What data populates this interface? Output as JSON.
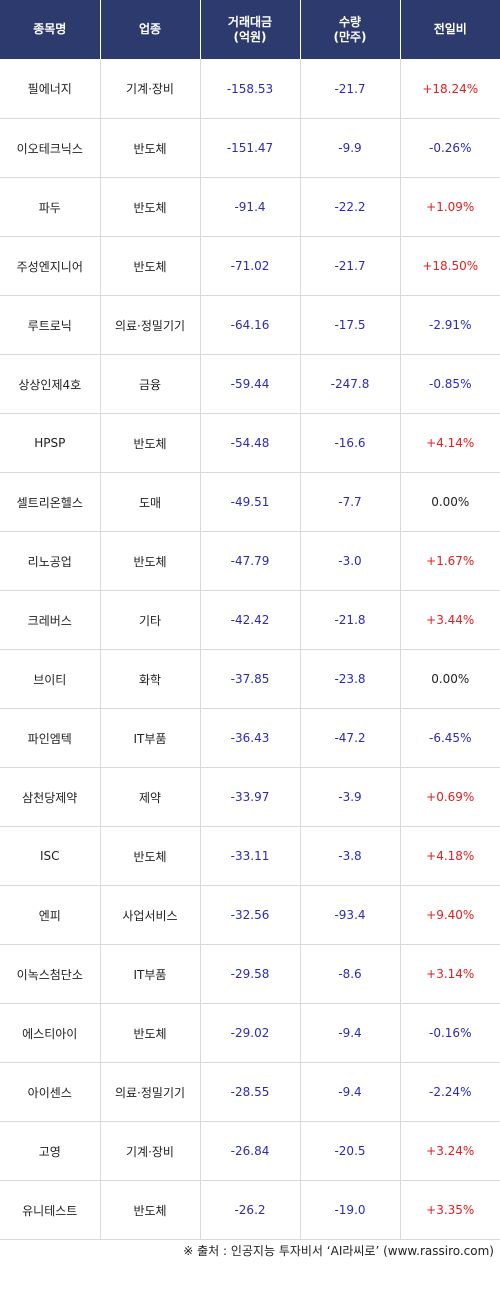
{
  "table": {
    "headers": {
      "name": "종목명",
      "sector": "업종",
      "amount_line1": "거래대금",
      "amount_line2": "(억원)",
      "qty_line1": "수량",
      "qty_line2": "(만주)",
      "change": "전일비"
    },
    "rows": [
      {
        "name": "필에너지",
        "sector": "기계·장비",
        "amount": "-158.53",
        "qty": "-21.7",
        "change": "+18.24%",
        "dir": "pos"
      },
      {
        "name": "이오테크닉스",
        "sector": "반도체",
        "amount": "-151.47",
        "qty": "-9.9",
        "change": "-0.26%",
        "dir": "neg"
      },
      {
        "name": "파두",
        "sector": "반도체",
        "amount": "-91.4",
        "qty": "-22.2",
        "change": "+1.09%",
        "dir": "pos"
      },
      {
        "name": "주성엔지니어",
        "sector": "반도체",
        "amount": "-71.02",
        "qty": "-21.7",
        "change": "+18.50%",
        "dir": "pos"
      },
      {
        "name": "루트로닉",
        "sector": "의료·정밀기기",
        "amount": "-64.16",
        "qty": "-17.5",
        "change": "-2.91%",
        "dir": "neg"
      },
      {
        "name": "상상인제4호",
        "sector": "금융",
        "amount": "-59.44",
        "qty": "-247.8",
        "change": "-0.85%",
        "dir": "neg"
      },
      {
        "name": "HPSP",
        "sector": "반도체",
        "amount": "-54.48",
        "qty": "-16.6",
        "change": "+4.14%",
        "dir": "pos"
      },
      {
        "name": "셀트리온헬스",
        "sector": "도매",
        "amount": "-49.51",
        "qty": "-7.7",
        "change": "0.00%",
        "dir": "zero"
      },
      {
        "name": "리노공업",
        "sector": "반도체",
        "amount": "-47.79",
        "qty": "-3.0",
        "change": "+1.67%",
        "dir": "pos"
      },
      {
        "name": "크레버스",
        "sector": "기타",
        "amount": "-42.42",
        "qty": "-21.8",
        "change": "+3.44%",
        "dir": "pos"
      },
      {
        "name": "브이티",
        "sector": "화학",
        "amount": "-37.85",
        "qty": "-23.8",
        "change": "0.00%",
        "dir": "zero"
      },
      {
        "name": "파인엠텍",
        "sector": "IT부품",
        "amount": "-36.43",
        "qty": "-47.2",
        "change": "-6.45%",
        "dir": "neg"
      },
      {
        "name": "삼천당제약",
        "sector": "제약",
        "amount": "-33.97",
        "qty": "-3.9",
        "change": "+0.69%",
        "dir": "pos"
      },
      {
        "name": "ISC",
        "sector": "반도체",
        "amount": "-33.11",
        "qty": "-3.8",
        "change": "+4.18%",
        "dir": "pos"
      },
      {
        "name": "엔피",
        "sector": "사업서비스",
        "amount": "-32.56",
        "qty": "-93.4",
        "change": "+9.40%",
        "dir": "pos"
      },
      {
        "name": "이녹스첨단소",
        "sector": "IT부품",
        "amount": "-29.58",
        "qty": "-8.6",
        "change": "+3.14%",
        "dir": "pos"
      },
      {
        "name": "에스티아이",
        "sector": "반도체",
        "amount": "-29.02",
        "qty": "-9.4",
        "change": "-0.16%",
        "dir": "neg"
      },
      {
        "name": "아이센스",
        "sector": "의료·정밀기기",
        "amount": "-28.55",
        "qty": "-9.4",
        "change": "-2.24%",
        "dir": "neg"
      },
      {
        "name": "고영",
        "sector": "기계·장비",
        "amount": "-26.84",
        "qty": "-20.5",
        "change": "+3.24%",
        "dir": "pos"
      },
      {
        "name": "유니테스트",
        "sector": "반도체",
        "amount": "-26.2",
        "qty": "-19.0",
        "change": "+3.35%",
        "dir": "pos"
      }
    ]
  },
  "footer": {
    "source": "※ 출처 : 인공지능 투자비서 ‘AI라씨로’ (www.rassiro.com)"
  },
  "colors": {
    "header_bg": "#2c3a6d",
    "negative": "#2b2bb8",
    "positive": "#e02020",
    "neutral": "#222222"
  }
}
